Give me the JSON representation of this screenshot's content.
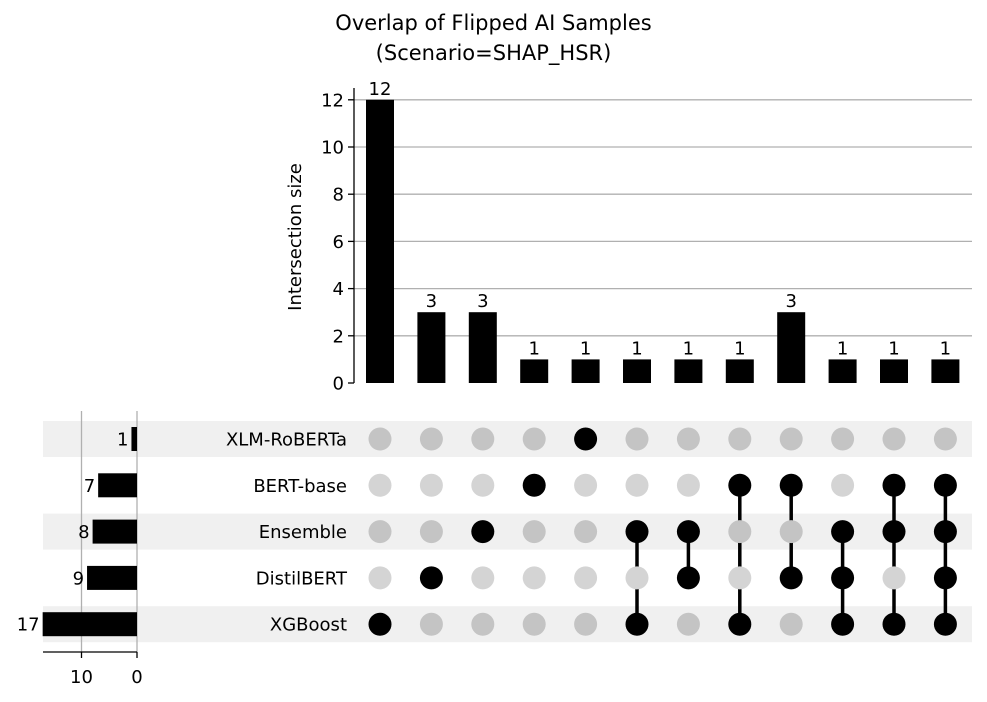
{
  "chart_data": {
    "type": "bar",
    "title": [
      "Overlap of Flipped AI Samples",
      "(Scenario=SHAP_HSR)"
    ],
    "ylabel": "Intersection size",
    "ylim": [
      0,
      12.6
    ],
    "yticks": [
      0,
      2,
      4,
      6,
      8,
      10,
      12
    ],
    "grid": true,
    "sets": [
      "XLM-RoBERTa",
      "BERT-base",
      "Ensemble",
      "DistilBERT",
      "XGBoost"
    ],
    "set_sizes": [
      1,
      7,
      8,
      9,
      17
    ],
    "set_size_ticks": [
      10,
      0
    ],
    "intersections": [
      {
        "members": [
          "XGBoost"
        ],
        "value": 12
      },
      {
        "members": [
          "DistilBERT"
        ],
        "value": 3
      },
      {
        "members": [
          "Ensemble"
        ],
        "value": 3
      },
      {
        "members": [
          "BERT-base"
        ],
        "value": 1
      },
      {
        "members": [
          "XLM-RoBERTa"
        ],
        "value": 1
      },
      {
        "members": [
          "Ensemble",
          "XGBoost"
        ],
        "value": 1
      },
      {
        "members": [
          "Ensemble",
          "DistilBERT"
        ],
        "value": 1
      },
      {
        "members": [
          "BERT-base",
          "XGBoost"
        ],
        "value": 1
      },
      {
        "members": [
          "BERT-base",
          "DistilBERT"
        ],
        "value": 3
      },
      {
        "members": [
          "Ensemble",
          "DistilBERT",
          "XGBoost"
        ],
        "value": 1
      },
      {
        "members": [
          "BERT-base",
          "Ensemble",
          "XGBoost"
        ],
        "value": 1
      },
      {
        "members": [
          "BERT-base",
          "Ensemble",
          "DistilBERT",
          "XGBoost"
        ],
        "value": 1
      }
    ],
    "colors": {
      "bar": "#000000",
      "dot_active": "#000000",
      "dot_inactive_light": "#d4d4d4",
      "dot_inactive_dark": "#c4c4c4",
      "stripe": "#f0f0f0",
      "grid": "#b0b0b0"
    }
  }
}
